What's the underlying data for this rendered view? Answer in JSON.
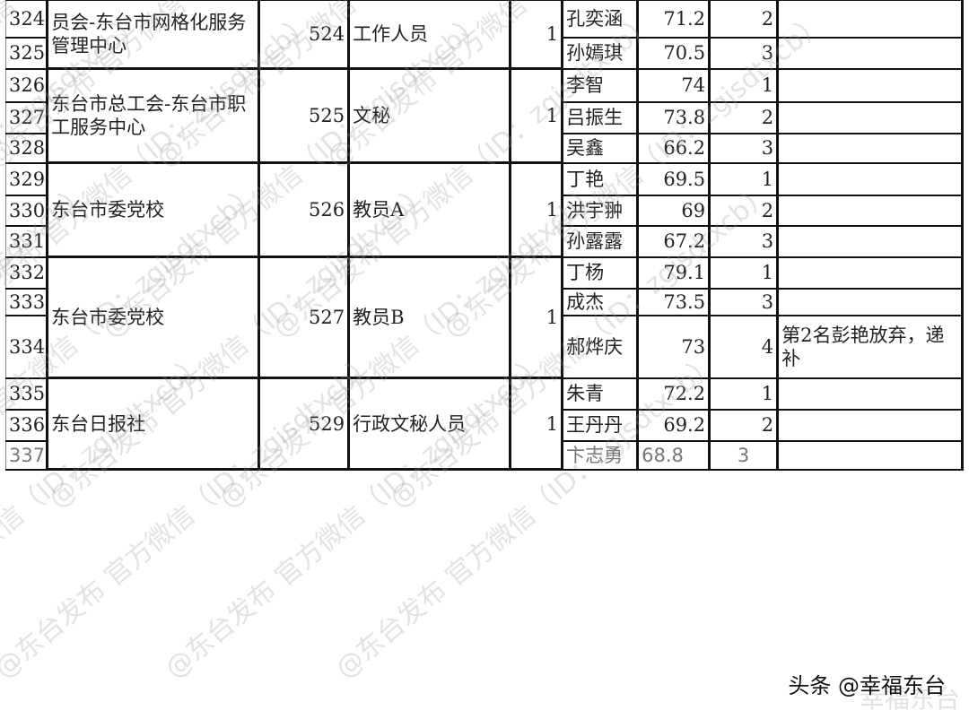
{
  "groups": [
    {
      "unit": "员会-东台市网格化服务管理中心",
      "code": "524",
      "position": "工作人员",
      "count": "1",
      "rows": [
        {
          "no": "324",
          "name": "孔奕涵",
          "score": "71.2",
          "rank": "2",
          "remark": ""
        },
        {
          "no": "325",
          "name": "孙嫣琪",
          "score": "70.5",
          "rank": "3",
          "remark": ""
        }
      ]
    },
    {
      "unit": "东台市总工会-东台市职工服务中心",
      "code": "525",
      "position": "文秘",
      "count": "1",
      "rows": [
        {
          "no": "326",
          "name": "李智",
          "score": "74",
          "rank": "1",
          "remark": ""
        },
        {
          "no": "327",
          "name": "吕振生",
          "score": "73.8",
          "rank": "2",
          "remark": ""
        },
        {
          "no": "328",
          "name": "吴鑫",
          "score": "66.2",
          "rank": "3",
          "remark": ""
        }
      ]
    },
    {
      "unit": "东台市委党校",
      "code": "526",
      "position": "教员A",
      "count": "1",
      "rows": [
        {
          "no": "329",
          "name": "丁艳",
          "score": "69.5",
          "rank": "1",
          "remark": ""
        },
        {
          "no": "330",
          "name": "洪宇翀",
          "score": "69",
          "rank": "2",
          "remark": ""
        },
        {
          "no": "331",
          "name": "孙露露",
          "score": "67.2",
          "rank": "3",
          "remark": ""
        }
      ]
    },
    {
      "unit": "东台市委党校",
      "code": "527",
      "position": "教员B",
      "count": "1",
      "rows": [
        {
          "no": "332",
          "name": "丁杨",
          "score": "79.1",
          "rank": "1",
          "remark": ""
        },
        {
          "no": "333",
          "name": "成杰",
          "score": "73.5",
          "rank": "3",
          "remark": ""
        },
        {
          "no": "334",
          "name": "郝烨庆",
          "score": "73",
          "rank": "4",
          "remark": "第2名彭艳放弃，递补"
        }
      ]
    },
    {
      "unit": "东台日报社",
      "code": "529",
      "position": "行政文秘人员",
      "count": "1",
      "rows": [
        {
          "no": "335",
          "name": "朱青",
          "score": "72.2",
          "rank": "1",
          "remark": ""
        },
        {
          "no": "336",
          "name": "王丹丹",
          "score": "69.2",
          "rank": "2",
          "remark": ""
        },
        {
          "no": "337",
          "name": "卞志勇",
          "score": "68.8",
          "rank": "3",
          "remark": "",
          "grey": true
        }
      ]
    }
  ],
  "watermark": "@东台发布 官方微信（ID：zgjsdtxcb）",
  "footer": {
    "source": "头条 @幸福东台",
    "faded": "幸福东台"
  }
}
